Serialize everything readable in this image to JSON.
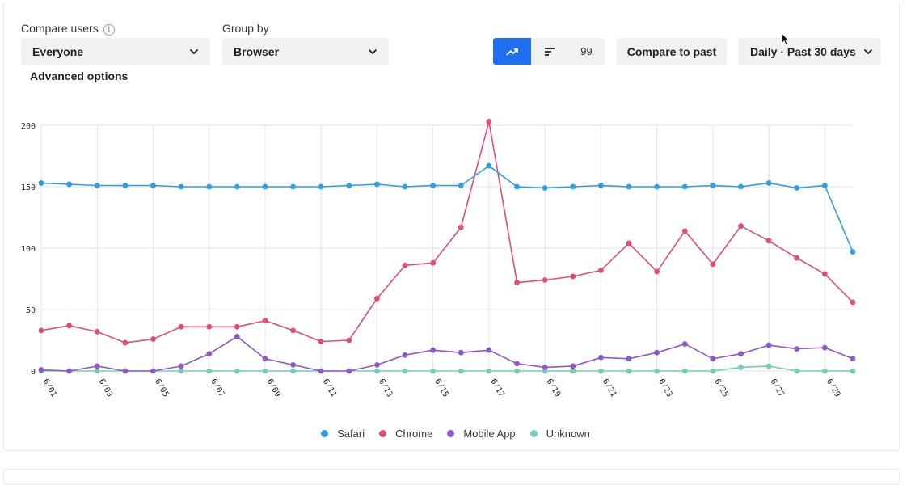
{
  "controls": {
    "compare_label": "Compare users",
    "info_glyph": "i",
    "compare_value": "Everyone",
    "group_label": "Group by",
    "group_value": "Browser",
    "advanced": "Advanced options",
    "seg_count": "99",
    "compare_past": "Compare to past",
    "range": "Daily · Past 30 days"
  },
  "icons": {
    "trend": "trend-line-icon",
    "sort": "sort-bars-icon",
    "info": "info-icon",
    "chevron": "chevron-down-icon",
    "cursor": "mouse-cursor-icon"
  },
  "colors": {
    "accent": "#1e6ff0",
    "safari": "#2c9fe0",
    "chrome": "#e24c7b",
    "mobile": "#8f57c8",
    "unknown": "#74cdb9"
  },
  "chart_data": {
    "type": "line",
    "x": [
      "6/01",
      "6/02",
      "6/03",
      "6/04",
      "6/05",
      "6/06",
      "6/07",
      "6/08",
      "6/09",
      "6/10",
      "6/11",
      "6/12",
      "6/13",
      "6/14",
      "6/15",
      "6/16",
      "6/17",
      "6/18",
      "6/19",
      "6/20",
      "6/21",
      "6/22",
      "6/23",
      "6/24",
      "6/25",
      "6/26",
      "6/27",
      "6/28",
      "6/29",
      "6/30"
    ],
    "tick_labels": [
      "6/01",
      "6/03",
      "6/05",
      "6/07",
      "6/09",
      "6/11",
      "6/13",
      "6/15",
      "6/17",
      "6/19",
      "6/21",
      "6/23",
      "6/25",
      "6/27",
      "6/29"
    ],
    "ylim": [
      0,
      200
    ],
    "yticks": [
      "0",
      "50",
      "100",
      "150",
      "200"
    ],
    "grid": true,
    "legend_position": "bottom-center",
    "series": [
      {
        "name": "Safari",
        "color": "#2c9fe0",
        "values": [
          153,
          152,
          151,
          151,
          151,
          150,
          150,
          150,
          150,
          150,
          150,
          151,
          152,
          150,
          151,
          151,
          167,
          150,
          149,
          150,
          151,
          150,
          150,
          150,
          151,
          150,
          153,
          149,
          151,
          97
        ]
      },
      {
        "name": "Chrome",
        "color": "#e24c7b",
        "values": [
          33,
          37,
          32,
          23,
          26,
          36,
          36,
          36,
          41,
          33,
          24,
          25,
          59,
          86,
          88,
          117,
          203,
          72,
          74,
          77,
          82,
          104,
          81,
          114,
          87,
          118,
          106,
          92,
          79,
          56
        ]
      },
      {
        "name": "Mobile App",
        "color": "#8f57c8",
        "values": [
          1,
          0,
          4,
          0,
          0,
          4,
          14,
          28,
          10,
          5,
          0,
          0,
          5,
          13,
          17,
          15,
          17,
          6,
          3,
          4,
          11,
          10,
          15,
          22,
          10,
          14,
          21,
          18,
          19,
          10
        ]
      },
      {
        "name": "Unknown",
        "color": "#74cdb9",
        "values": [
          0,
          0,
          0,
          0,
          0,
          0,
          0,
          0,
          0,
          0,
          0,
          0,
          0,
          0,
          0,
          0,
          0,
          0,
          0,
          0,
          0,
          0,
          0,
          0,
          0,
          3,
          4,
          0,
          0,
          0
        ]
      }
    ]
  }
}
